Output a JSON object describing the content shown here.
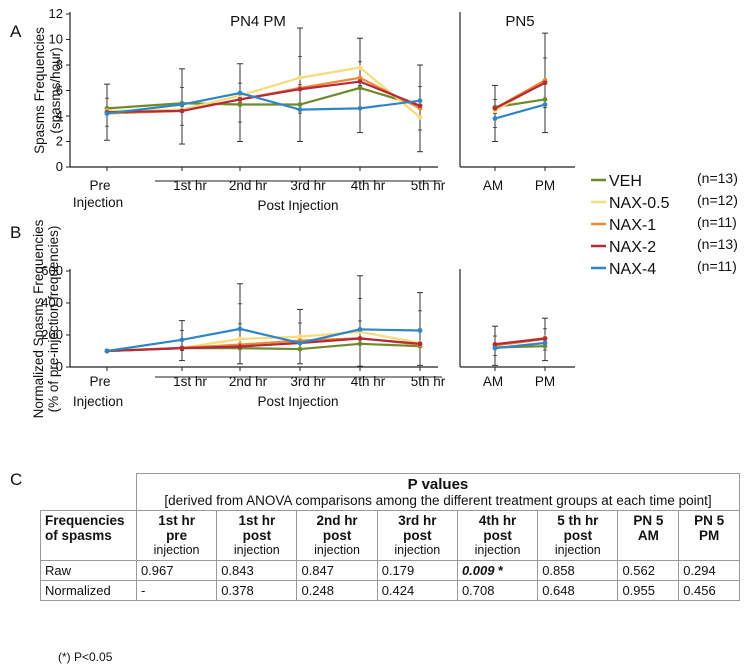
{
  "panel_labels": {
    "a": "A",
    "b": "B",
    "c": "C"
  },
  "colors": {
    "VEH": "#6f8a2a",
    "NAX-0.5": "#f6dc7d",
    "NAX-1": "#ee8a35",
    "NAX-2": "#b52a3b",
    "NAX-4": "#2f86c6",
    "error_bar": "#333333",
    "axis": "#222222"
  },
  "legend": [
    {
      "name": "VEH",
      "n": "(n=13)"
    },
    {
      "name": "NAX-0.5",
      "n": "(n=12)"
    },
    {
      "name": "NAX-1",
      "n": "(n=11)"
    },
    {
      "name": "NAX-2",
      "n": "(n=13)"
    },
    {
      "name": "NAX-4",
      "n": "(n=11)"
    }
  ],
  "chart_data": [
    {
      "type": "line",
      "panel": "A",
      "title_main": "PN4 PM",
      "title_side": "PN5",
      "ylabel_line1": "Spasms Frequencies",
      "ylabel_line2": "(spasms/hour)",
      "ylim": [
        0,
        12
      ],
      "yticks": [
        0,
        2,
        4,
        6,
        8,
        10,
        12
      ],
      "x_main": [
        "Pre",
        "1st hr",
        "2nd hr",
        "3rd hr",
        "4th hr",
        "5th hr"
      ],
      "pre_sublabel": "Injection",
      "group_label": "Post Injection",
      "x_side": [
        "AM",
        "PM"
      ],
      "series": [
        {
          "name": "VEH",
          "main": [
            4.6,
            5.0,
            4.9,
            4.9,
            6.2,
            4.8
          ],
          "side": [
            4.7,
            5.3
          ]
        },
        {
          "name": "NAX-0.5",
          "main": [
            4.4,
            4.5,
            5.6,
            7.0,
            7.8,
            3.9
          ],
          "side": [
            4.4,
            6.7
          ]
        },
        {
          "name": "NAX-1",
          "main": [
            4.2,
            4.4,
            5.3,
            6.2,
            7.0,
            4.6
          ],
          "side": [
            4.6,
            6.8
          ]
        },
        {
          "name": "NAX-2",
          "main": [
            4.3,
            4.4,
            5.3,
            6.1,
            6.7,
            4.8
          ],
          "side": [
            4.6,
            6.6
          ]
        },
        {
          "name": "NAX-4",
          "main": [
            4.2,
            4.9,
            5.8,
            4.5,
            4.6,
            5.2
          ],
          "side": [
            3.8,
            4.9
          ]
        }
      ],
      "error_bounds": {
        "main": [
          [
            2.1,
            6.5
          ],
          [
            1.8,
            7.7
          ],
          [
            2.0,
            8.1
          ],
          [
            2.0,
            10.9
          ],
          [
            2.7,
            10.1
          ],
          [
            1.2,
            8.0
          ]
        ],
        "side": [
          [
            2.0,
            6.4
          ],
          [
            2.7,
            10.5
          ]
        ]
      }
    },
    {
      "type": "line",
      "panel": "B",
      "ylabel_line1": "Normalized Spasms Frequencies",
      "ylabel_line2": "(% of pre-injection frequencies)",
      "ylim": [
        0,
        600
      ],
      "yticks": [
        0,
        200,
        400,
        600
      ],
      "x_main": [
        "Pre",
        "1st hr",
        "2nd hr",
        "3rd hr",
        "4th hr",
        "5th hr"
      ],
      "pre_sublabel": "Injection",
      "group_label": "Post Injection",
      "x_side": [
        "AM",
        "PM"
      ],
      "series": [
        {
          "name": "VEH",
          "main": [
            100,
            118,
            118,
            112,
            145,
            130
          ],
          "side": [
            122,
            130
          ]
        },
        {
          "name": "NAX-0.5",
          "main": [
            100,
            120,
            175,
            190,
            220,
            150
          ],
          "side": [
            140,
            182
          ]
        },
        {
          "name": "NAX-1",
          "main": [
            100,
            120,
            140,
            165,
            180,
            140
          ],
          "side": [
            135,
            175
          ]
        },
        {
          "name": "NAX-2",
          "main": [
            100,
            118,
            128,
            150,
            178,
            145
          ],
          "side": [
            142,
            178
          ]
        },
        {
          "name": "NAX-4",
          "main": [
            100,
            170,
            238,
            150,
            235,
            228
          ],
          "side": [
            118,
            150
          ]
        }
      ],
      "error_bounds": {
        "main": [
          [
            100,
            100
          ],
          [
            40,
            290
          ],
          [
            20,
            520
          ],
          [
            20,
            360
          ],
          [
            5,
            570
          ],
          [
            10,
            465
          ]
        ],
        "side": [
          [
            10,
            255
          ],
          [
            40,
            305
          ]
        ]
      }
    }
  ],
  "table": {
    "title": "P values",
    "subtitle": "[derived from ANOVA comparisons among the different treatment groups at each time point]",
    "columns": [
      {
        "l1": "Frequencies",
        "l2": "of spasms",
        "l3": ""
      },
      {
        "l1": "1st hr",
        "l2": "pre",
        "l3": "injection"
      },
      {
        "l1": "1st hr",
        "l2": "post",
        "l3": "injection"
      },
      {
        "l1": "2nd hr",
        "l2": "post",
        "l3": "injection"
      },
      {
        "l1": "3rd hr",
        "l2": "post",
        "l3": "injection"
      },
      {
        "l1": "4th hr",
        "l2": "post",
        "l3": "injection"
      },
      {
        "l1": "5 th hr",
        "l2": "post",
        "l3": "injection"
      },
      {
        "l1": "PN 5",
        "l2": "AM",
        "l3": ""
      },
      {
        "l1": "PN 5",
        "l2": "PM",
        "l3": ""
      }
    ],
    "rows": [
      {
        "label": "Raw",
        "values": [
          "0.967",
          "0.843",
          "0.847",
          "0.179",
          "0.009 *",
          "0.858",
          "0.562",
          "0.294"
        ]
      },
      {
        "label": "Normalized",
        "values": [
          "-",
          "0.378",
          "0.248",
          "0.424",
          "0.708",
          "0.648",
          "0.955",
          "0.456"
        ]
      }
    ],
    "footnote": "(*) P<0.05"
  }
}
